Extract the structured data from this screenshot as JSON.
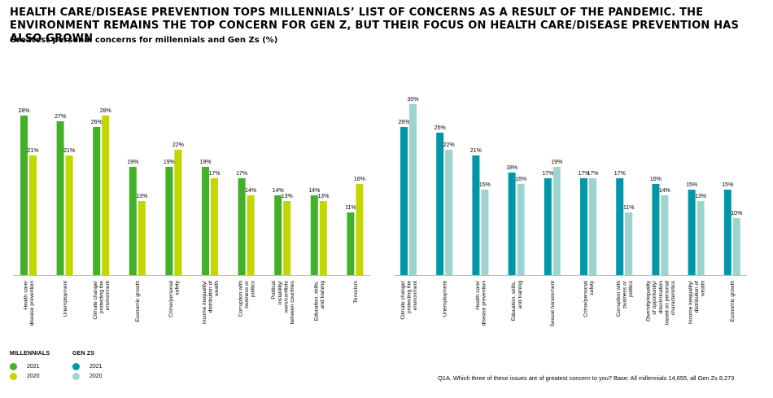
{
  "title": "HEALTH CARE/DISEASE PREVENTION TOPS MILLENNIALS’ LIST OF CONCERNS AS A RESULT OF THE PANDEMIC. THE ENVIRONMENT REMAINS THE TOP CONCERN FOR GEN Z, BUT THEIR FOCUS ON HEALTH CARE/DISEASE PREVENTION HAS ALSO GROWN",
  "subtitle": "Greatest personal concerns for millennials and Gen Zs (%)",
  "footnote": "Q1A. Which three of these issues are of greatest concern to you? Base: All millennials 14,655, all Gen Zs 8,273",
  "colors": {
    "millennials_2021": "#43b02a",
    "millennials_2020": "#c4d600",
    "genz_2021": "#0097a9",
    "genz_2020": "#9dd4cf"
  },
  "legend": [
    {
      "title": "MILLENNIALS",
      "items": [
        {
          "label": "2021",
          "color": "#43b02a"
        },
        {
          "label": "2020",
          "color": "#c4d600"
        }
      ]
    },
    {
      "title": "GEN ZS",
      "items": [
        {
          "label": "2021",
          "color": "#0097a9"
        },
        {
          "label": "2020",
          "color": "#9dd4cf"
        }
      ]
    }
  ],
  "chart_data": [
    {
      "type": "bar",
      "group": "Millennials",
      "categories": [
        "Health care/ disease prevention",
        "Unemployment",
        "Climate change/ protecting the environment",
        "Economic growth",
        "Crime/personal safety",
        "Income inequality/ distribution of wealth",
        "Corruption with business or politics",
        "Political instability/ wars/conflicts between countries",
        "Education, skills, and training",
        "Terrorism"
      ],
      "series": [
        {
          "name": "2021",
          "color": "#43b02a",
          "values": [
            28,
            27,
            26,
            19,
            19,
            19,
            17,
            14,
            14,
            11
          ]
        },
        {
          "name": "2020",
          "color": "#c4d600",
          "values": [
            21,
            21,
            28,
            13,
            22,
            17,
            14,
            13,
            13,
            16
          ]
        }
      ],
      "value_suffix": "%"
    },
    {
      "type": "bar",
      "group": "Gen Zs",
      "categories": [
        "Climate change/ protecting the environment",
        "Unemployment",
        "Health care/ disease prevention",
        "Education, skills, and training",
        "Sexual harassment",
        "Crime/personal safety",
        "Corruption with business or politics",
        "Diversity/equality of opportunity/ discrimination based on personal characteristics",
        "Income inequality/ distribution of wealth",
        "Economic growth"
      ],
      "series": [
        {
          "name": "2021",
          "color": "#0097a9",
          "values": [
            26,
            25,
            21,
            18,
            17,
            17,
            17,
            16,
            15,
            15
          ]
        },
        {
          "name": "2020",
          "color": "#9dd4cf",
          "values": [
            30,
            22,
            15,
            16,
            19,
            17,
            11,
            14,
            13,
            10
          ]
        }
      ],
      "value_suffix": "%"
    }
  ]
}
